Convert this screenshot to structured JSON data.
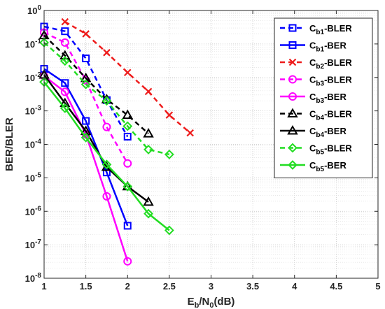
{
  "chart_data": {
    "type": "line",
    "xlabel": {
      "main": "E",
      "sub1": "b",
      "mid": "/N",
      "sub2": "0",
      "tail": "(dB)"
    },
    "ylabel": "BER/BLER",
    "xlim": [
      1,
      5
    ],
    "ylim": [
      1e-08,
      1
    ],
    "yscale": "log",
    "grid": "on (major and minor, dotted)",
    "legend_position": "top-right",
    "x_ticks": [
      "1",
      "1.5",
      "2",
      "2.5",
      "3",
      "3.5",
      "4",
      "4.5",
      "5"
    ],
    "x_tick_values": [
      1,
      1.5,
      2,
      2.5,
      3,
      3.5,
      4,
      4.5,
      5
    ],
    "y_ticks": [
      {
        "base": "10",
        "exp": "0",
        "value": 0
      },
      {
        "base": "10",
        "exp": "-1",
        "value": -1
      },
      {
        "base": "10",
        "exp": "-2",
        "value": -2
      },
      {
        "base": "10",
        "exp": "-3",
        "value": -3
      },
      {
        "base": "10",
        "exp": "-4",
        "value": -4
      },
      {
        "base": "10",
        "exp": "-5",
        "value": -5
      },
      {
        "base": "10",
        "exp": "-6",
        "value": -6
      },
      {
        "base": "10",
        "exp": "-7",
        "value": -7
      },
      {
        "base": "10",
        "exp": "-8",
        "value": -8
      }
    ],
    "series": [
      {
        "name": "Cb1-BLER",
        "label": {
          "main": "C",
          "sub": "b1",
          "tail": "-BLER"
        },
        "color": "#0000ff",
        "dash": true,
        "marker": "square",
        "x": [
          1,
          1.25,
          1.5,
          1.75,
          2
        ],
        "y": [
          0.33,
          0.24,
          0.037,
          0.0021,
          0.00017
        ]
      },
      {
        "name": "Cb1-BER",
        "label": {
          "main": "C",
          "sub": "b1",
          "tail": "-BER"
        },
        "color": "#0000ff",
        "dash": false,
        "marker": "square",
        "x": [
          1,
          1.25,
          1.5,
          1.75,
          2
        ],
        "y": [
          0.018,
          0.0068,
          0.0005,
          1.45e-05,
          3.7e-07
        ]
      },
      {
        "name": "Cb2-BLER",
        "label": {
          "main": "C",
          "sub": "b2",
          "tail": "-BLER"
        },
        "color": "#ee1c1c",
        "dash": true,
        "marker": "x",
        "x": [
          1.25,
          1.5,
          1.75,
          2,
          2.25,
          2.5,
          2.75
        ],
        "y": [
          0.46,
          0.2,
          0.055,
          0.014,
          0.0038,
          0.00075,
          0.00022
        ]
      },
      {
        "name": "Cb3-BLER",
        "label": {
          "main": "C",
          "sub": "b3",
          "tail": "-BLER"
        },
        "color": "#ff00ff",
        "dash": true,
        "marker": "circle",
        "x": [
          1,
          1.25,
          1.5,
          1.75,
          2
        ],
        "y": [
          0.22,
          0.11,
          0.0082,
          0.00033,
          2.7e-05
        ]
      },
      {
        "name": "Cb3-BER",
        "label": {
          "main": "C",
          "sub": "b3",
          "tail": "-BER"
        },
        "color": "#ff00ff",
        "dash": false,
        "marker": "circle",
        "x": [
          1,
          1.25,
          1.5,
          1.75,
          2
        ],
        "y": [
          0.011,
          0.0037,
          0.0002,
          2.8e-06,
          3.2e-08
        ]
      },
      {
        "name": "Cb4-BLER",
        "label": {
          "main": "C",
          "sub": "b4",
          "tail": "-BLER"
        },
        "color": "#000000",
        "dash": true,
        "marker": "triangle",
        "x": [
          1,
          1.25,
          1.5,
          1.75,
          2,
          2.25
        ],
        "y": [
          0.18,
          0.045,
          0.0095,
          0.0022,
          0.00075,
          0.00021
        ]
      },
      {
        "name": "Cb4-BER",
        "label": {
          "main": "C",
          "sub": "b4",
          "tail": "-BER"
        },
        "color": "#000000",
        "dash": false,
        "marker": "triangle",
        "x": [
          1,
          1.25,
          1.5,
          1.75,
          2,
          2.25
        ],
        "y": [
          0.012,
          0.0017,
          0.00025,
          2.1e-05,
          5.5e-06,
          1.9e-06
        ]
      },
      {
        "name": "Cb5-BLER",
        "label": {
          "main": "C",
          "sub": "b5",
          "tail": "-BLER"
        },
        "color": "#22dd22",
        "dash": true,
        "marker": "diamond",
        "x": [
          1,
          1.25,
          1.5,
          1.75,
          2,
          2.25,
          2.5
        ],
        "y": [
          0.11,
          0.031,
          0.0062,
          0.002,
          0.00035,
          7e-05,
          5e-05
        ]
      },
      {
        "name": "Cb5-BER",
        "label": {
          "main": "C",
          "sub": "b5",
          "tail": "-BER"
        },
        "color": "#22dd22",
        "dash": false,
        "marker": "diamond",
        "x": [
          1,
          1.25,
          1.5,
          1.75,
          2,
          2.25,
          2.5
        ],
        "y": [
          0.0073,
          0.0012,
          0.00016,
          2.5e-05,
          5.5e-06,
          8.5e-07,
          2.7e-07
        ]
      }
    ]
  }
}
